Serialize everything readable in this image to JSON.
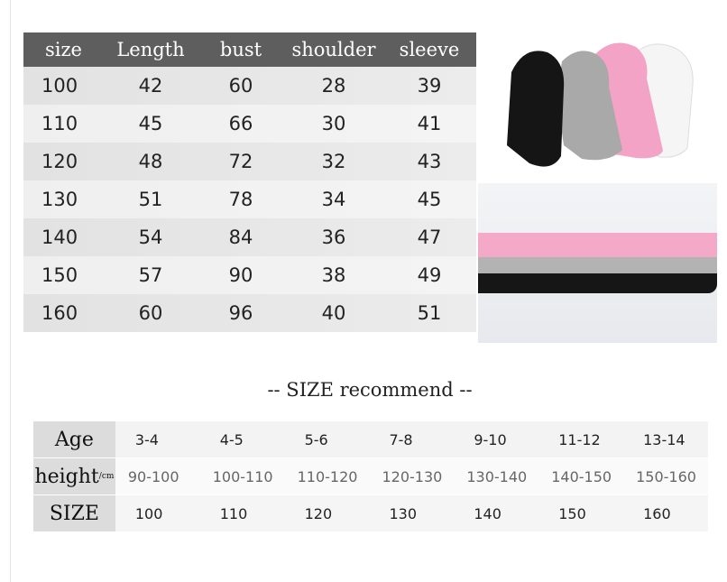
{
  "size_chart": {
    "headers": [
      "size",
      "Length",
      "bust",
      "shoulder",
      "sleeve"
    ],
    "rows": [
      [
        "100",
        "42",
        "60",
        "28",
        "39"
      ],
      [
        "110",
        "45",
        "66",
        "30",
        "41"
      ],
      [
        "120",
        "48",
        "72",
        "32",
        "43"
      ],
      [
        "130",
        "51",
        "78",
        "34",
        "45"
      ],
      [
        "140",
        "54",
        "84",
        "36",
        "47"
      ],
      [
        "150",
        "57",
        "90",
        "38",
        "49"
      ],
      [
        "160",
        "60",
        "96",
        "40",
        "51"
      ]
    ]
  },
  "recommend": {
    "title": "--  SIZE  recommend  --",
    "age_label": "Age",
    "height_label": "height",
    "height_unit": "/cm",
    "size_label": "SIZE",
    "ages": [
      "3-4",
      "4-5",
      "5-6",
      "7-8",
      "9-10",
      "11-12",
      "13-14"
    ],
    "heights": [
      "90-100",
      "100-110",
      "110-120",
      "120-130",
      "130-140",
      "140-150",
      "150-160"
    ],
    "sizes": [
      "100",
      "110",
      "120",
      "130",
      "140",
      "150",
      "160"
    ]
  },
  "colors": {
    "header": "#5e5e5e",
    "black": "#151515",
    "grey": "#a9a9a9",
    "pink": "#f3a3c6",
    "white": "#f4f4f4"
  }
}
